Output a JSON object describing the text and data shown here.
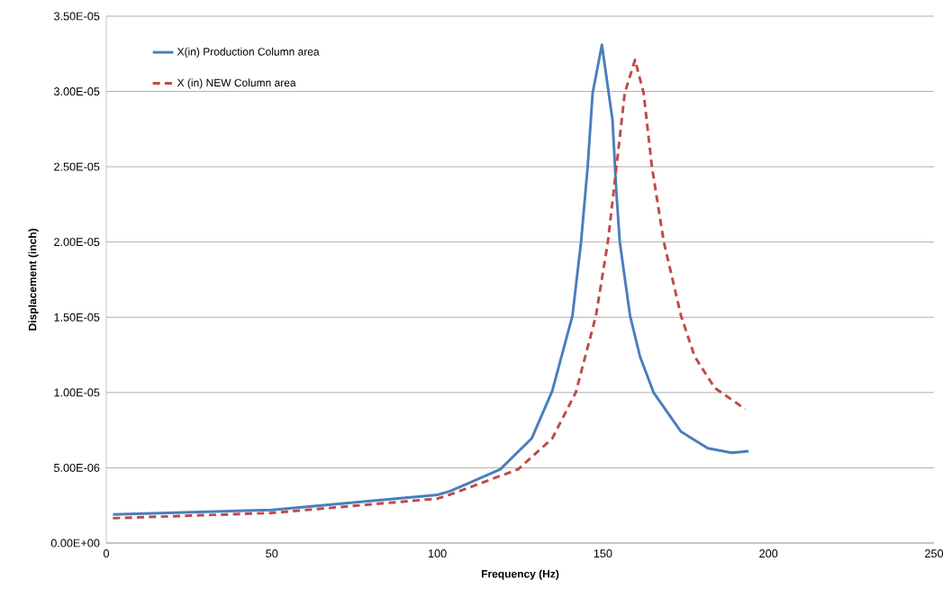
{
  "chart_data": {
    "type": "line",
    "xlabel": "Frequency (Hz)",
    "ylabel": "Displacement  (inch)",
    "xlim": [
      0,
      250
    ],
    "xticks": [
      0,
      50,
      100,
      150,
      200,
      250
    ],
    "ylim": [
      0,
      3.5e-05
    ],
    "yticks": [
      {
        "value": 0,
        "label": "0.00E+00"
      },
      {
        "value": 5e-06,
        "label": "5.00E-06"
      },
      {
        "value": 1e-05,
        "label": "1.00E-05"
      },
      {
        "value": 1.5e-05,
        "label": "1.50E-05"
      },
      {
        "value": 2e-05,
        "label": "2.00E-05"
      },
      {
        "value": 2.5e-05,
        "label": "2.50E-05"
      },
      {
        "value": 3e-05,
        "label": "3.00E-05"
      },
      {
        "value": 3.5e-05,
        "label": "3.50E-05"
      }
    ],
    "grid": "y",
    "legend": "top left",
    "marker": "none",
    "series": [
      {
        "name": "X(in) Production Column area",
        "color": "#4a7ebb",
        "line_style": "solid",
        "x": [
          2,
          50,
          100,
          104,
          119,
          128.5,
          134.7,
          140.8,
          143.4,
          145.4,
          146.9,
          149.7,
          152.9,
          154.1,
          155.1,
          158.2,
          161.2,
          165.3,
          173.6,
          181.7,
          188.9,
          194
        ],
        "values": [
          1.9e-06,
          2.2e-06,
          3.2e-06,
          3.46e-06,
          4.9e-06,
          6.95e-06,
          1.01e-05,
          1.51e-05,
          2e-05,
          2.5e-05,
          2.99e-05,
          3.31e-05,
          2.81e-05,
          2.32e-05,
          2e-05,
          1.51e-05,
          1.24e-05,
          1e-05,
          7.4e-06,
          6.3e-06,
          6e-06,
          6.1e-06
        ]
      },
      {
        "name": "X (in) NEW Column area",
        "color": "#be4b48",
        "line_style": "dashed",
        "x": [
          2,
          50,
          100,
          104,
          124.4,
          134.7,
          141.8,
          147.9,
          151.5,
          154.1,
          156.6,
          159.7,
          162.3,
          164.8,
          168.4,
          173.6,
          177.7,
          183.8,
          193
        ],
        "values": [
          1.65e-06,
          2e-06,
          2.95e-06,
          3.23e-06,
          4.9e-06,
          6.95e-06,
          1e-05,
          1.51e-05,
          2e-05,
          2.5e-05,
          2.99e-05,
          3.21e-05,
          2.99e-05,
          2.5e-05,
          2e-05,
          1.51e-05,
          1.24e-05,
          1.03e-05,
          8.9e-06
        ]
      }
    ]
  }
}
